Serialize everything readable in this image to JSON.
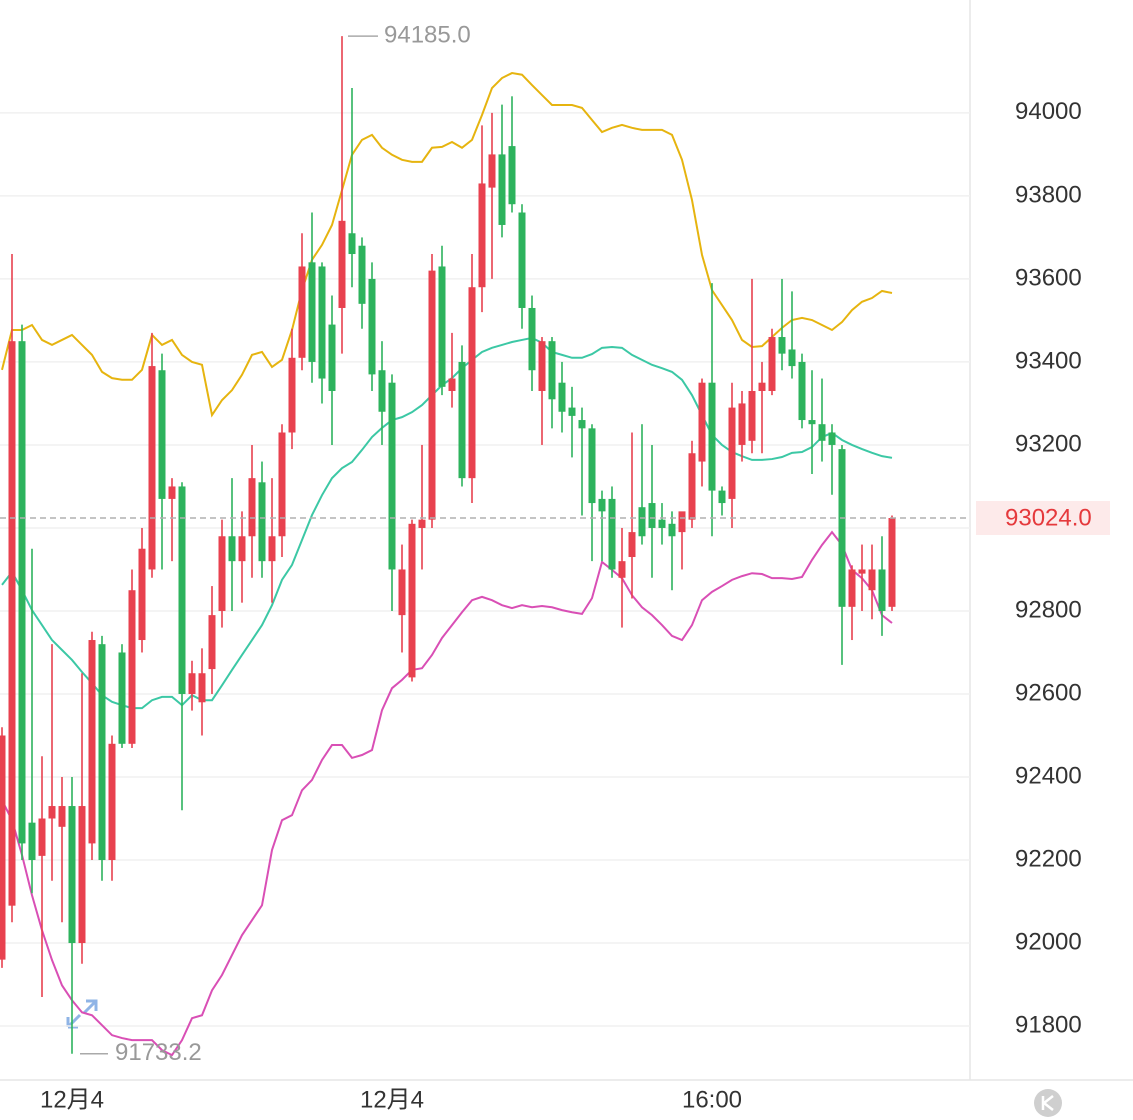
{
  "chart_data": {
    "type": "candlestick",
    "categories": [
      null,
      null,
      null,
      null,
      null,
      null,
      null,
      "12月4",
      null,
      null,
      null,
      null,
      null,
      null,
      null,
      null,
      null,
      null,
      null,
      null,
      null,
      null,
      null,
      null,
      null,
      null,
      null,
      null,
      null,
      null,
      null,
      null,
      null,
      null,
      null,
      null,
      null,
      null,
      null,
      "12月4",
      null,
      null,
      null,
      null,
      null,
      null,
      null,
      null,
      null,
      null,
      null,
      null,
      null,
      null,
      null,
      null,
      null,
      null,
      null,
      null,
      null,
      null,
      null,
      null,
      null,
      null,
      null,
      null,
      null,
      null,
      null,
      "16:00",
      null,
      null,
      null,
      null,
      null,
      null,
      null,
      null,
      null,
      null,
      null,
      null,
      null,
      null,
      null,
      null,
      null,
      null
    ],
    "open": [
      91960,
      92090,
      93450,
      92290,
      92210,
      92300,
      92280,
      92330,
      92000,
      92240,
      92720,
      92200,
      92700,
      92480,
      92730,
      92900,
      93380,
      93070,
      93100,
      92600,
      92580,
      92660,
      92800,
      92980,
      92920,
      92980,
      93110,
      92920,
      92980,
      93230,
      93410,
      93640,
      93630,
      93490,
      93530,
      93710,
      93680,
      93600,
      93380,
      93350,
      92790,
      92640,
      93000,
      93020,
      93630,
      93330,
      93400,
      93120,
      93580,
      93820,
      93900,
      93920,
      93760,
      93530,
      93330,
      93450,
      93350,
      93290,
      93260,
      93240,
      93070,
      93070,
      92880,
      92930,
      93050,
      93060,
      93020,
      93010,
      92990,
      93020,
      93160,
      93350,
      93090,
      93070,
      93200,
      93210,
      93330,
      93330,
      93460,
      93430,
      93400,
      93260,
      93250,
      93230,
      93190,
      92810,
      92890,
      92850,
      92900,
      92810
    ],
    "high": [
      92520,
      93660,
      93490,
      92950,
      92450,
      92720,
      92400,
      92400,
      92650,
      92750,
      92740,
      92500,
      92720,
      92900,
      93000,
      93470,
      93420,
      93120,
      93110,
      92680,
      92710,
      92860,
      93020,
      93120,
      93040,
      93200,
      93160,
      93120,
      93250,
      93480,
      93710,
      93760,
      93640,
      93560,
      94185,
      94060,
      93700,
      93640,
      93450,
      93370,
      92960,
      93020,
      93200,
      93660,
      93680,
      93470,
      93440,
      93660,
      93970,
      94000,
      94020,
      94040,
      93780,
      93560,
      93460,
      93460,
      93400,
      93340,
      93290,
      93250,
      93090,
      93100,
      93000,
      93230,
      93250,
      93200,
      93060,
      93040,
      93030,
      93210,
      93360,
      93590,
      93100,
      93350,
      93330,
      93600,
      93400,
      93480,
      93600,
      93570,
      93420,
      93380,
      93360,
      93250,
      93200,
      92910,
      92960,
      92960,
      92980,
      93030
    ],
    "low": [
      91940,
      92050,
      92200,
      92120,
      91870,
      92150,
      92050,
      91733.2,
      91950,
      92200,
      92150,
      92150,
      92470,
      92470,
      92700,
      92880,
      92900,
      92920,
      92320,
      92560,
      92500,
      92600,
      92760,
      92800,
      92820,
      92880,
      92880,
      92820,
      92930,
      93190,
      93380,
      93350,
      93300,
      93200,
      93420,
      93580,
      93480,
      93330,
      93200,
      92800,
      92700,
      92630,
      92900,
      93000,
      93320,
      93290,
      93100,
      93060,
      93520,
      93600,
      93700,
      93760,
      93480,
      93330,
      93200,
      93240,
      93230,
      93170,
      93030,
      92920,
      92920,
      92880,
      92760,
      92830,
      92960,
      92880,
      92960,
      92850,
      92900,
      93000,
      93100,
      92980,
      93030,
      93000,
      93160,
      93180,
      93180,
      93320,
      93380,
      93360,
      93240,
      93130,
      93160,
      93080,
      92670,
      92730,
      92800,
      92780,
      92740,
      92800
    ],
    "close": [
      92500,
      93450,
      92240,
      92200,
      92300,
      92330,
      92330,
      92000,
      92330,
      92730,
      92200,
      92480,
      92480,
      92850,
      92950,
      93390,
      93070,
      93100,
      92600,
      92650,
      92650,
      92790,
      92980,
      92920,
      92980,
      93120,
      92920,
      92980,
      93230,
      93410,
      93630,
      93400,
      93360,
      93330,
      93740,
      93660,
      93540,
      93370,
      93280,
      92900,
      92900,
      93010,
      93020,
      93620,
      93340,
      93360,
      93120,
      93580,
      93830,
      93900,
      93730,
      93780,
      93530,
      93380,
      93450,
      93310,
      93280,
      93270,
      93240,
      93060,
      93040,
      92900,
      92920,
      92990,
      92980,
      93000,
      93000,
      92980,
      93040,
      93180,
      93350,
      93090,
      93060,
      93290,
      93300,
      93330,
      93350,
      93460,
      93420,
      93390,
      93260,
      93250,
      93210,
      93200,
      92810,
      92900,
      92900,
      92900,
      92800,
      93024.0
    ],
    "up_color": "#e8414f",
    "down_color": "#2db35d",
    "overlays": [
      {
        "color": "#e6b40f",
        "values": [
          93381,
          93477,
          93477,
          93489,
          93453,
          93441,
          93453,
          93465,
          93441,
          93417,
          93376,
          93361,
          93357,
          93357,
          93381,
          93465,
          93441,
          93453,
          93417,
          93400,
          93393,
          93272,
          93308,
          93332,
          93369,
          93417,
          93424,
          93388,
          93405,
          93477,
          93573,
          93646,
          93682,
          93730,
          93814,
          93899,
          93935,
          93947,
          93916,
          93899,
          93887,
          93882,
          93882,
          93916,
          93918,
          93930,
          93916,
          93935,
          93995,
          94060,
          94084,
          94096,
          94092,
          94067,
          94043,
          94019,
          94019,
          94019,
          94012,
          93983,
          93954,
          93964,
          93971,
          93964,
          93959,
          93959,
          93959,
          93947,
          93887,
          93790,
          93658,
          93573,
          93537,
          93501,
          93453,
          93436,
          93438,
          93460,
          93482,
          93501,
          93506,
          93501,
          93489,
          93477,
          93496,
          93525,
          93545,
          93554,
          93571,
          93566
        ]
      },
      {
        "color": "#3cc8a5",
        "values": [
          92863,
          92894,
          92850,
          92802,
          92766,
          92730,
          92706,
          92682,
          92653,
          92626,
          92597,
          92581,
          92573,
          92566,
          92566,
          92585,
          92593,
          92593,
          92573,
          92597,
          92585,
          92585,
          92621,
          92658,
          92694,
          92730,
          92766,
          92814,
          92875,
          92911,
          92971,
          93031,
          93079,
          93120,
          93144,
          93159,
          93188,
          93219,
          93241,
          93260,
          93267,
          93279,
          93296,
          93320,
          93344,
          93361,
          93385,
          93405,
          93424,
          93434,
          93441,
          93448,
          93453,
          93458,
          93446,
          93424,
          93417,
          93410,
          93410,
          93419,
          93434,
          93436,
          93434,
          93417,
          93405,
          93393,
          93385,
          93376,
          93357,
          93320,
          93272,
          93224,
          93200,
          93183,
          93173,
          93164,
          93164,
          93166,
          93171,
          93181,
          93183,
          93195,
          93219,
          93229,
          93212,
          93200,
          93190,
          93181,
          93173,
          93169
        ]
      },
      {
        "color": "#d94fb5",
        "values": [
          92344,
          92296,
          92212,
          92115,
          92031,
          91959,
          91898,
          91862,
          91833,
          91826,
          91802,
          91778,
          91771,
          91766,
          91766,
          91766,
          91742,
          91730,
          91766,
          91819,
          91826,
          91886,
          91923,
          91971,
          92019,
          92055,
          92091,
          92224,
          92296,
          92308,
          92368,
          92393,
          92441,
          92477,
          92477,
          92446,
          92453,
          92465,
          92561,
          92614,
          92634,
          92658,
          92662,
          92694,
          92735,
          92766,
          92797,
          92826,
          92834,
          92826,
          92814,
          92807,
          92814,
          92809,
          92812,
          92809,
          92802,
          92797,
          92793,
          92831,
          92918,
          92899,
          92879,
          92838,
          92809,
          92790,
          92766,
          92740,
          92730,
          92766,
          92826,
          92846,
          92860,
          92875,
          92884,
          92891,
          92889,
          92879,
          92879,
          92877,
          92882,
          92923,
          92959,
          92990,
          92959,
          92899,
          92879,
          92850,
          92790,
          92771
        ]
      }
    ],
    "ylim": [
      91670,
      94272
    ],
    "yticks": [
      91800,
      92000,
      92200,
      92400,
      92600,
      92800,
      93000,
      93200,
      93400,
      93600,
      93800,
      94000
    ],
    "grid": true,
    "last_price": {
      "value": 93024,
      "label": "93024.0"
    },
    "high_label": {
      "value": 94185,
      "label": "94185.0"
    },
    "low_label": 91733.2
  }
}
